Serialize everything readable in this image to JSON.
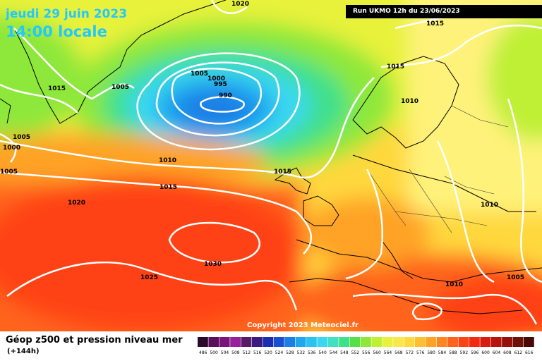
{
  "header": {
    "date": "jeudi 29 juin 2023",
    "time": "14:00 locale",
    "run": "Run UKMO 12h du 23/06/2023"
  },
  "footer": {
    "title": "Géop z500 et pression niveau mer",
    "subtitle": "(+144h)",
    "copyright": "Copyright 2023 Meteociel.fr"
  },
  "isobar_labels": [
    "1020",
    "1015",
    "1015",
    "1015",
    "1005",
    "1005",
    "1000",
    "995",
    "990",
    "1010",
    "1015",
    "1005",
    "1000",
    "1005",
    "1010",
    "1015",
    "1020",
    "1010",
    "1030",
    "1025",
    "1010",
    "1005"
  ],
  "legend": {
    "values": [
      "486",
      "500",
      "504",
      "508",
      "512",
      "516",
      "520",
      "524",
      "528",
      "532",
      "536",
      "540",
      "544",
      "548",
      "552",
      "556",
      "560",
      "564",
      "568",
      "572",
      "576",
      "580",
      "584",
      "588",
      "592",
      "596",
      "600",
      "604",
      "608",
      "612",
      "616"
    ],
    "colors": [
      "#2a0a2a",
      "#5a0f5a",
      "#7a147a",
      "#9a1e9a",
      "#5a1a6a",
      "#3a1a80",
      "#1a2fb0",
      "#1a4fd0",
      "#1a7fe6",
      "#1ea6ef",
      "#2cc3f2",
      "#3ad8f0",
      "#42e0c0",
      "#3fe08a",
      "#55e04a",
      "#8ee83a",
      "#bff034",
      "#e8f23a",
      "#f8e84a",
      "#ffd83e",
      "#ffbf30",
      "#ffa326",
      "#ff8520",
      "#ff641a",
      "#ff4212",
      "#f22a10",
      "#d81c10",
      "#b8140e",
      "#96100c",
      "#70100a",
      "#4a0806"
    ]
  },
  "colors": {
    "title": "#22c8ff",
    "isobar": "#ffffff",
    "land_line": "#000000"
  }
}
